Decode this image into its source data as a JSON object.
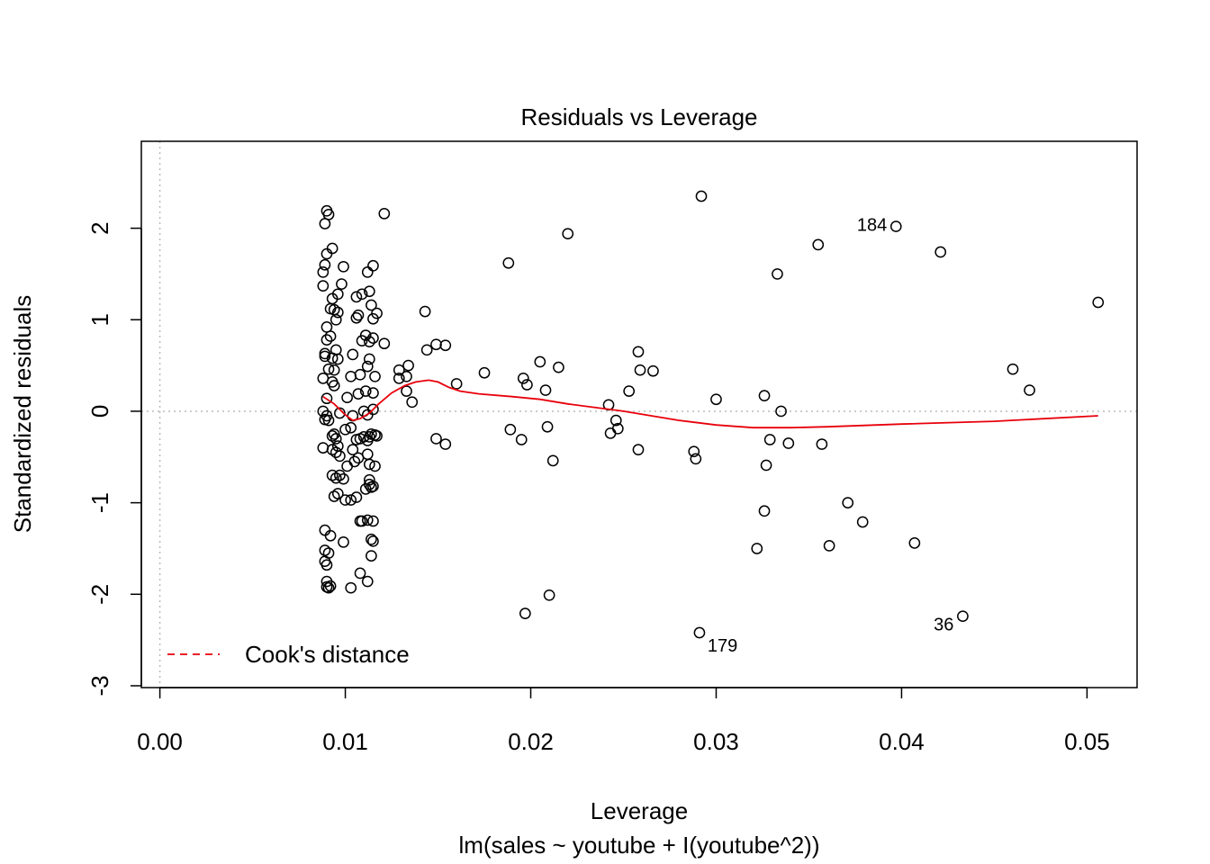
{
  "chart_data": {
    "type": "scatter",
    "title": "Residuals vs Leverage",
    "xlabel": "Leverage",
    "subtitle": "lm(sales ~ youtube + I(youtube^2))",
    "ylabel": "Standardized residuals",
    "xlim": [
      -0.001,
      0.0527
    ],
    "ylim": [
      -3.02,
      2.95
    ],
    "x_ticks": [
      0.0,
      0.01,
      0.02,
      0.03,
      0.04,
      0.05
    ],
    "x_tick_labels": [
      "0.00",
      "0.01",
      "0.02",
      "0.03",
      "0.04",
      "0.05"
    ],
    "y_ticks": [
      -3,
      -2,
      -1,
      0,
      1,
      2
    ],
    "y_tick_labels": [
      "-3",
      "-2",
      "-1",
      "0",
      "1",
      "2"
    ],
    "grid": false,
    "reference_lines": {
      "x": 0,
      "y": 0,
      "style": "dotted"
    },
    "legend": {
      "position": "bottom-left",
      "entries": [
        {
          "label": "Cook's distance",
          "color": "#e8000b",
          "style": "dashed"
        }
      ]
    },
    "colors": {
      "points": "#000000",
      "smooth": "#e8000b",
      "reference": "#bbbbbb"
    },
    "points": [
      [
        0.0089,
        2.05
      ],
      [
        0.009,
        2.19
      ],
      [
        0.0091,
        2.15
      ],
      [
        0.0093,
        1.78
      ],
      [
        0.0089,
        1.6
      ],
      [
        0.009,
        1.72
      ],
      [
        0.0088,
        1.52
      ],
      [
        0.0088,
        1.37
      ],
      [
        0.0092,
        1.12
      ],
      [
        0.0094,
        1.11
      ],
      [
        0.0096,
        1.08
      ],
      [
        0.0095,
        1.0
      ],
      [
        0.0098,
        1.39
      ],
      [
        0.0099,
        1.58
      ],
      [
        0.0096,
        1.28
      ],
      [
        0.0093,
        1.23
      ],
      [
        0.009,
        0.92
      ],
      [
        0.009,
        0.78
      ],
      [
        0.0092,
        0.82
      ],
      [
        0.0095,
        0.67
      ],
      [
        0.0089,
        0.63
      ],
      [
        0.0089,
        0.6
      ],
      [
        0.0091,
        0.46
      ],
      [
        0.0094,
        0.45
      ],
      [
        0.0096,
        0.57
      ],
      [
        0.0093,
        0.58
      ],
      [
        0.0088,
        0.36
      ],
      [
        0.0093,
        0.32
      ],
      [
        0.0094,
        0.28
      ],
      [
        0.009,
        0.14
      ],
      [
        0.0088,
        0.0
      ],
      [
        0.0089,
        -0.09
      ],
      [
        0.009,
        -0.05
      ],
      [
        0.0091,
        -0.1
      ],
      [
        0.0093,
        -0.27
      ],
      [
        0.0094,
        -0.25
      ],
      [
        0.0095,
        -0.3
      ],
      [
        0.0096,
        -0.38
      ],
      [
        0.0088,
        -0.4
      ],
      [
        0.0093,
        -0.42
      ],
      [
        0.0095,
        -0.45
      ],
      [
        0.0097,
        -0.49
      ],
      [
        0.0093,
        -0.7
      ],
      [
        0.0095,
        -0.73
      ],
      [
        0.0097,
        -0.7
      ],
      [
        0.0099,
        -0.74
      ],
      [
        0.0094,
        -0.93
      ],
      [
        0.0096,
        -0.9
      ],
      [
        0.01,
        -0.97
      ],
      [
        0.0089,
        -1.3
      ],
      [
        0.0092,
        -1.36
      ],
      [
        0.0099,
        -1.43
      ],
      [
        0.0089,
        -1.52
      ],
      [
        0.0091,
        -1.55
      ],
      [
        0.0089,
        -1.64
      ],
      [
        0.009,
        -1.68
      ],
      [
        0.009,
        -1.86
      ],
      [
        0.0091,
        -1.93
      ],
      [
        0.009,
        -1.92
      ],
      [
        0.0092,
        -1.91
      ],
      [
        0.0103,
        -1.93
      ],
      [
        0.0108,
        -1.77
      ],
      [
        0.0112,
        -1.86
      ],
      [
        0.0114,
        -1.58
      ],
      [
        0.0114,
        -1.4
      ],
      [
        0.0115,
        -1.42
      ],
      [
        0.0108,
        -1.2
      ],
      [
        0.0109,
        -1.2
      ],
      [
        0.0112,
        -1.19
      ],
      [
        0.0115,
        -1.2
      ],
      [
        0.0103,
        -0.97
      ],
      [
        0.0106,
        -0.94
      ],
      [
        0.0111,
        -0.85
      ],
      [
        0.0113,
        -0.75
      ],
      [
        0.0113,
        -0.8
      ],
      [
        0.0114,
        -0.83
      ],
      [
        0.0115,
        -0.82
      ],
      [
        0.0101,
        -0.6
      ],
      [
        0.0105,
        -0.55
      ],
      [
        0.0107,
        -0.51
      ],
      [
        0.0112,
        -0.47
      ],
      [
        0.0113,
        -0.58
      ],
      [
        0.0116,
        -0.6
      ],
      [
        0.0104,
        -0.42
      ],
      [
        0.0106,
        -0.31
      ],
      [
        0.0108,
        -0.3
      ],
      [
        0.011,
        -0.28
      ],
      [
        0.0112,
        -0.32
      ],
      [
        0.0113,
        -0.28
      ],
      [
        0.0114,
        -0.25
      ],
      [
        0.0116,
        -0.26
      ],
      [
        0.0117,
        -0.27
      ],
      [
        0.01,
        -0.2
      ],
      [
        0.0103,
        -0.18
      ],
      [
        0.0104,
        -0.05
      ],
      [
        0.0107,
        0.19
      ],
      [
        0.011,
        0.0
      ],
      [
        0.0112,
        -0.04
      ],
      [
        0.0115,
        0.02
      ],
      [
        0.0111,
        0.22
      ],
      [
        0.0115,
        0.2
      ],
      [
        0.0103,
        0.38
      ],
      [
        0.0108,
        0.4
      ],
      [
        0.0112,
        0.49
      ],
      [
        0.0113,
        0.57
      ],
      [
        0.0116,
        0.38
      ],
      [
        0.0109,
        0.77
      ],
      [
        0.0111,
        0.83
      ],
      [
        0.0113,
        0.76
      ],
      [
        0.0115,
        0.8
      ],
      [
        0.0106,
        1.02
      ],
      [
        0.0107,
        1.05
      ],
      [
        0.0115,
        1.01
      ],
      [
        0.0117,
        1.07
      ],
      [
        0.0106,
        1.25
      ],
      [
        0.0109,
        1.28
      ],
      [
        0.0113,
        1.31
      ],
      [
        0.0114,
        1.16
      ],
      [
        0.0112,
        1.52
      ],
      [
        0.0115,
        1.59
      ],
      [
        0.0104,
        0.62
      ],
      [
        0.0101,
        0.15
      ],
      [
        0.0097,
        -0.02
      ],
      [
        0.0121,
        2.16
      ],
      [
        0.0121,
        0.74
      ],
      [
        0.0129,
        0.45
      ],
      [
        0.0129,
        0.36
      ],
      [
        0.0133,
        0.38
      ],
      [
        0.0133,
        0.22
      ],
      [
        0.0134,
        0.5
      ],
      [
        0.0136,
        0.1
      ],
      [
        0.0143,
        1.09
      ],
      [
        0.0144,
        0.67
      ],
      [
        0.0149,
        0.73
      ],
      [
        0.0154,
        0.72
      ],
      [
        0.0149,
        -0.3
      ],
      [
        0.0154,
        -0.36
      ],
      [
        0.016,
        0.3
      ],
      [
        0.0175,
        0.42
      ],
      [
        0.0188,
        1.62
      ],
      [
        0.0189,
        -0.2
      ],
      [
        0.0195,
        -0.31
      ],
      [
        0.0196,
        0.36
      ],
      [
        0.0198,
        0.29
      ],
      [
        0.0197,
        -2.21
      ],
      [
        0.0205,
        0.54
      ],
      [
        0.0208,
        0.23
      ],
      [
        0.0209,
        -0.17
      ],
      [
        0.021,
        -2.01
      ],
      [
        0.0212,
        -0.54
      ],
      [
        0.0215,
        0.48
      ],
      [
        0.022,
        1.94
      ],
      [
        0.0242,
        0.07
      ],
      [
        0.0243,
        -0.24
      ],
      [
        0.0246,
        -0.1
      ],
      [
        0.0247,
        -0.19
      ],
      [
        0.0253,
        0.22
      ],
      [
        0.0258,
        0.65
      ],
      [
        0.0259,
        0.45
      ],
      [
        0.0258,
        -0.42
      ],
      [
        0.0266,
        0.44
      ],
      [
        0.0288,
        -0.44
      ],
      [
        0.0289,
        -0.52
      ],
      [
        0.0292,
        2.35
      ],
      [
        0.0291,
        -2.42
      ],
      [
        0.03,
        0.13
      ],
      [
        0.0322,
        -1.5
      ],
      [
        0.0326,
        0.17
      ],
      [
        0.0326,
        -1.09
      ],
      [
        0.0327,
        -0.59
      ],
      [
        0.0329,
        -0.31
      ],
      [
        0.0333,
        1.5
      ],
      [
        0.0335,
        0.0
      ],
      [
        0.0339,
        -0.35
      ],
      [
        0.0355,
        1.82
      ],
      [
        0.0357,
        -0.36
      ],
      [
        0.0361,
        -1.47
      ],
      [
        0.0371,
        -1.0
      ],
      [
        0.0379,
        -1.21
      ],
      [
        0.0397,
        2.02
      ],
      [
        0.0407,
        -1.44
      ],
      [
        0.0421,
        1.74
      ],
      [
        0.0433,
        -2.24
      ],
      [
        0.046,
        0.46
      ],
      [
        0.0469,
        0.23
      ],
      [
        0.0506,
        1.19
      ]
    ],
    "point_labels": [
      {
        "label": "184",
        "x": 0.0397,
        "y": 2.02
      },
      {
        "label": "179",
        "x": 0.0291,
        "y": -2.42
      },
      {
        "label": "36",
        "x": 0.0433,
        "y": -2.24
      }
    ],
    "smooth_line": [
      [
        0.0088,
        0.16
      ],
      [
        0.0094,
        0.08
      ],
      [
        0.01,
        -0.04
      ],
      [
        0.0104,
        -0.1
      ],
      [
        0.0108,
        -0.08
      ],
      [
        0.0113,
        -0.02
      ],
      [
        0.0118,
        0.08
      ],
      [
        0.0125,
        0.2
      ],
      [
        0.0132,
        0.28
      ],
      [
        0.0138,
        0.32
      ],
      [
        0.0145,
        0.34
      ],
      [
        0.015,
        0.32
      ],
      [
        0.0156,
        0.26
      ],
      [
        0.0162,
        0.22
      ],
      [
        0.0172,
        0.19
      ],
      [
        0.019,
        0.16
      ],
      [
        0.0205,
        0.13
      ],
      [
        0.022,
        0.08
      ],
      [
        0.025,
        0.0
      ],
      [
        0.028,
        -0.1
      ],
      [
        0.03,
        -0.15
      ],
      [
        0.032,
        -0.18
      ],
      [
        0.034,
        -0.18
      ],
      [
        0.036,
        -0.17
      ],
      [
        0.04,
        -0.14
      ],
      [
        0.045,
        -0.11
      ],
      [
        0.0506,
        -0.05
      ]
    ]
  }
}
